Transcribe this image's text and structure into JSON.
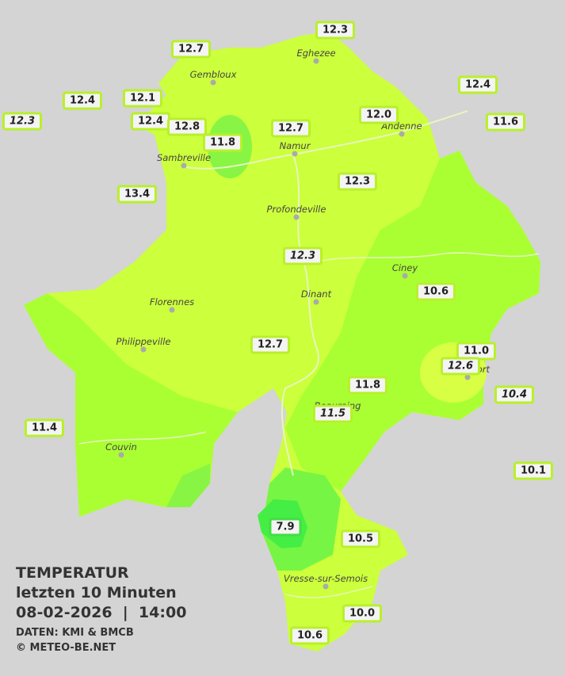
{
  "header": {
    "title": "TEMPERATUR",
    "period": "letzten 10 Minuten",
    "datetime": "08-02-2026  |  14:00",
    "source": "DATEN: KMI & BMCB",
    "copyright": "© METEO-BE.NET"
  },
  "cities": [
    "Eghezee",
    "Gembloux",
    "Andenne",
    "Namur",
    "Sambreville",
    "Profondeville",
    "Ciney",
    "Dinant",
    "Florennes",
    "Philippeville",
    "Rochefort",
    "Beauraing",
    "Couvin",
    "Vresse-sur-Semois"
  ],
  "stations": [
    "12.3",
    "12.7",
    "12.4",
    "12.4",
    "12.1",
    "12.3",
    "12.4",
    "12.8",
    "11.8",
    "12.7",
    "12.0",
    "11.6",
    "13.4",
    "12.3",
    "12.3",
    "10.6",
    "12.7",
    "11.0",
    "12.6",
    "10.4",
    "11.8",
    "11.5",
    "11.4",
    "10.1",
    "7.9",
    "10.5",
    "10.0",
    "10.6"
  ]
}
